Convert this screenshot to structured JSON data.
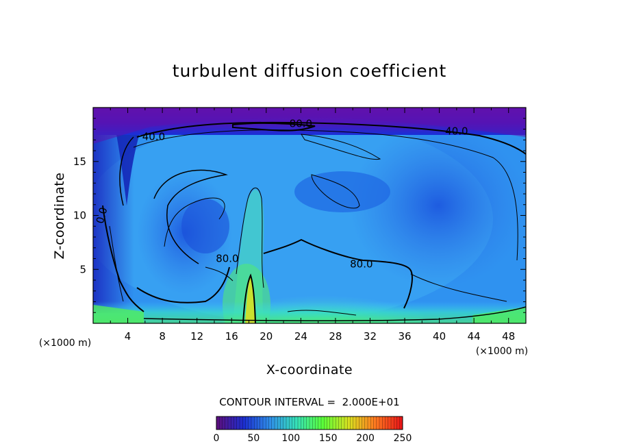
{
  "chart_data": {
    "type": "heatmap",
    "title": "turbulent diffusion coefficient",
    "xlabel": "X-coordinate",
    "ylabel": "Z-coordinate",
    "x_unit": "(×1000 m)",
    "y_unit": "(×1000 m)",
    "xlim": [
      0,
      50
    ],
    "ylim": [
      0,
      20
    ],
    "xticks": [
      4,
      8,
      12,
      16,
      20,
      24,
      28,
      32,
      36,
      40,
      44,
      48
    ],
    "yticks": [
      5,
      10,
      15
    ],
    "contour_interval_text": "CONTOUR INTERVAL =  2.000E+01",
    "contour_interval": 20,
    "contour_labels": [
      {
        "text": "40.0",
        "x": 7,
        "z": 17.3
      },
      {
        "text": "80.0",
        "x": 24,
        "z": 18.5
      },
      {
        "text": "40.0",
        "x": 42,
        "z": 17.8
      },
      {
        "text": "80.0",
        "x": 15.5,
        "z": 6.0
      },
      {
        "text": "80.0",
        "x": 31,
        "z": 5.5
      },
      {
        "text": "0.0",
        "x": 1,
        "z": 10
      }
    ],
    "colorbar": {
      "min": 0,
      "max": 250,
      "ticks": [
        0,
        50,
        100,
        150,
        200,
        250
      ],
      "colors": [
        "#5a0f80",
        "#1c2fd0",
        "#2f8fe8",
        "#36e0b8",
        "#5aff3a",
        "#d8e020",
        "#ff7a20",
        "#e81818"
      ]
    }
  }
}
